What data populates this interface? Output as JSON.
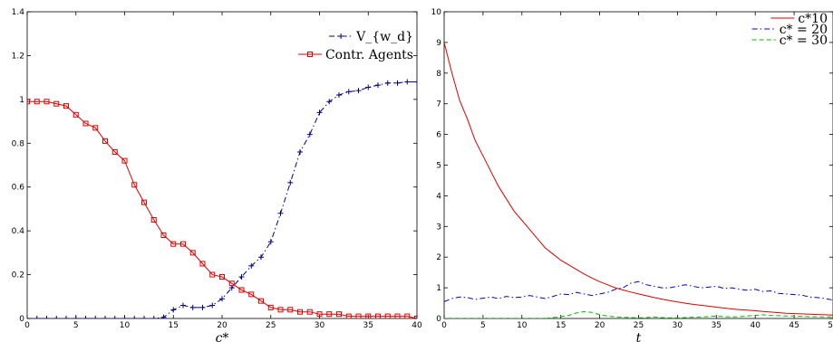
{
  "chart_data": [
    {
      "type": "line",
      "xlabel": "c*",
      "ylabel": "",
      "xlim": [
        0,
        40
      ],
      "ylim": [
        0,
        1.4
      ],
      "xticks": [
        "0",
        "5",
        "10",
        "15",
        "20",
        "25",
        "30",
        "35",
        "40"
      ],
      "yticks": [
        "0",
        "0.2",
        "0.4",
        "0.6",
        "0.8",
        "1",
        "1.2",
        "1.4"
      ],
      "grid": false,
      "legend": "top-right",
      "x": [
        0,
        1,
        2,
        3,
        4,
        5,
        6,
        7,
        8,
        9,
        10,
        11,
        12,
        13,
        14,
        15,
        16,
        17,
        18,
        19,
        20,
        21,
        22,
        23,
        24,
        25,
        26,
        27,
        28,
        29,
        30,
        31,
        32,
        33,
        34,
        35,
        36,
        37,
        38,
        39,
        40
      ],
      "series": [
        {
          "name": "V_{w_d}",
          "color": "#000080",
          "style": "dash-dot",
          "marker": "plus",
          "values": [
            0,
            0,
            0,
            0,
            0,
            0,
            0,
            0,
            0,
            0,
            0,
            0,
            0,
            0,
            0.005,
            0.04,
            0.06,
            0.05,
            0.05,
            0.06,
            0.09,
            0.14,
            0.19,
            0.24,
            0.28,
            0.35,
            0.48,
            0.62,
            0.76,
            0.84,
            0.94,
            0.99,
            1.02,
            1.035,
            1.04,
            1.055,
            1.065,
            1.075,
            1.075,
            1.08,
            1.08
          ]
        },
        {
          "name": "Contr. Agents",
          "color": "#e00000",
          "style": "solid",
          "marker": "square",
          "values": [
            0.99,
            0.99,
            0.99,
            0.98,
            0.97,
            0.93,
            0.89,
            0.87,
            0.81,
            0.76,
            0.72,
            0.61,
            0.53,
            0.45,
            0.38,
            0.34,
            0.34,
            0.3,
            0.25,
            0.2,
            0.19,
            0.16,
            0.13,
            0.11,
            0.08,
            0.05,
            0.04,
            0.04,
            0.03,
            0.03,
            0.02,
            0.02,
            0.02,
            0.01,
            0.01,
            0.01,
            0.01,
            0.01,
            0.01,
            0.01,
            0
          ]
        }
      ]
    },
    {
      "type": "line",
      "xlabel": "t",
      "ylabel": "",
      "xlim": [
        0,
        50
      ],
      "ylim": [
        0,
        10
      ],
      "xticks": [
        "0",
        "5",
        "10",
        "15",
        "20",
        "25",
        "30",
        "35",
        "40",
        "45",
        "50"
      ],
      "yticks": [
        "0",
        "1",
        "2",
        "3",
        "4",
        "5",
        "6",
        "7",
        "8",
        "9",
        "10"
      ],
      "grid": false,
      "legend": "top-right",
      "x": [
        0,
        1,
        2,
        3,
        4,
        5,
        6,
        7,
        8,
        9,
        10,
        11,
        12,
        13,
        14,
        15,
        16,
        17,
        18,
        19,
        20,
        21,
        22,
        23,
        24,
        25,
        26,
        27,
        28,
        29,
        30,
        31,
        32,
        33,
        34,
        35,
        36,
        37,
        38,
        39,
        40,
        41,
        42,
        43,
        44,
        45,
        46,
        47,
        48,
        49,
        50
      ],
      "series": [
        {
          "name": "c*10",
          "color": "#e00000",
          "style": "solid",
          "values": [
            9.0,
            8.0,
            7.1,
            6.5,
            5.8,
            5.3,
            4.8,
            4.3,
            3.9,
            3.5,
            3.2,
            2.9,
            2.6,
            2.3,
            2.1,
            1.9,
            1.75,
            1.6,
            1.45,
            1.32,
            1.2,
            1.1,
            1.0,
            0.93,
            0.86,
            0.8,
            0.74,
            0.68,
            0.63,
            0.58,
            0.54,
            0.5,
            0.46,
            0.43,
            0.4,
            0.37,
            0.34,
            0.31,
            0.29,
            0.27,
            0.25,
            0.23,
            0.21,
            0.19,
            0.17,
            0.16,
            0.15,
            0.14,
            0.13,
            0.12,
            0.11
          ]
        },
        {
          "name": "c* = 20",
          "color": "#0000cc",
          "style": "dash-dot",
          "values": [
            0.55,
            0.65,
            0.7,
            0.68,
            0.62,
            0.66,
            0.7,
            0.65,
            0.72,
            0.68,
            0.7,
            0.75,
            0.7,
            0.65,
            0.72,
            0.8,
            0.78,
            0.85,
            0.8,
            0.75,
            0.8,
            0.85,
            0.95,
            1.0,
            1.15,
            1.2,
            1.1,
            1.05,
            1.0,
            1.0,
            1.05,
            1.1,
            1.05,
            1.0,
            1.02,
            1.05,
            0.98,
            1.0,
            0.95,
            0.92,
            0.95,
            0.88,
            0.9,
            0.82,
            0.8,
            0.78,
            0.76,
            0.7,
            0.68,
            0.65,
            0.6
          ]
        },
        {
          "name": "c* = 30",
          "color": "#00bb00",
          "style": "dashed",
          "values": [
            0,
            0,
            0,
            0,
            0,
            0,
            0,
            0,
            0,
            0,
            0,
            0,
            0,
            0,
            0.03,
            0.06,
            0.1,
            0.18,
            0.22,
            0.2,
            0.12,
            0.08,
            0.05,
            0.04,
            0.03,
            0.02,
            0.03,
            0.05,
            0.03,
            0.02,
            0.02,
            0.03,
            0.04,
            0.05,
            0.06,
            0.08,
            0.06,
            0.05,
            0.06,
            0.08,
            0.1,
            0.12,
            0.1,
            0.09,
            0.08,
            0.08,
            0.07,
            0.06,
            0.06,
            0.05,
            0.05
          ]
        }
      ]
    }
  ]
}
